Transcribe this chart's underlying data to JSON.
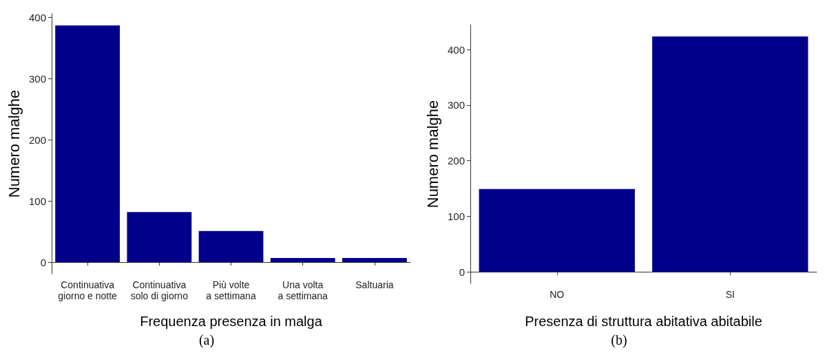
{
  "chart_data": [
    {
      "type": "bar",
      "xlabel": "Frequenza presenza in malga",
      "ylabel": "Numero malghe",
      "categories": [
        "Continuativa\ngiorno e notte",
        "Continuativa\nsolo di giorno",
        "Più volte\na settimana",
        "Una volta\na settimana",
        "Saltuaria"
      ],
      "values": [
        387,
        82,
        51,
        7,
        7
      ],
      "color": "#00008b",
      "ylim": [
        -19,
        406
      ],
      "yticks": [
        0,
        100,
        200,
        300,
        400
      ],
      "grid": false,
      "annotations": [
        "(a)"
      ]
    },
    {
      "type": "bar",
      "xlabel": "Presenza di struttura abitativa abitabile",
      "ylabel": "Numero malghe",
      "categories": [
        "NO",
        "SI"
      ],
      "values": [
        149,
        424
      ],
      "color": "#00008b",
      "ylim": [
        -21,
        445
      ],
      "yticks": [
        0,
        100,
        200,
        300,
        400
      ],
      "grid": false,
      "annotations": [
        "(b)"
      ]
    }
  ]
}
